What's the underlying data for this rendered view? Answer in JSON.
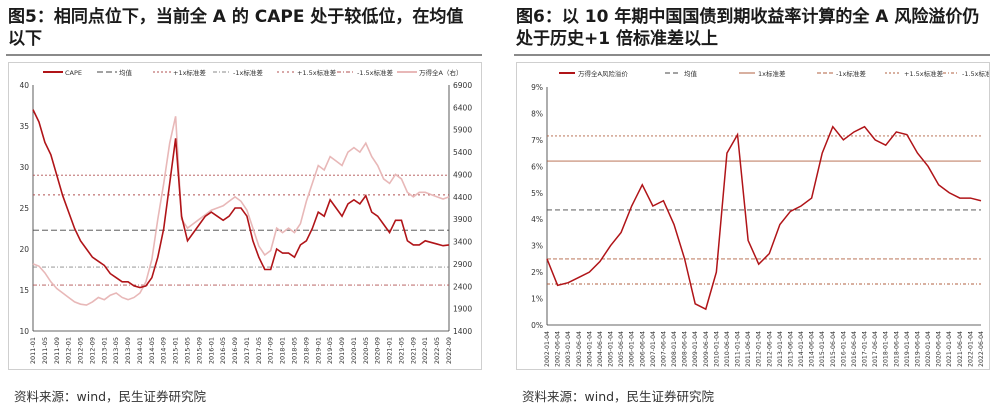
{
  "panels": [
    {
      "title": "图5：相同点位下，当前全 A 的 CAPE 处于较低位，在均值以下",
      "source": "资料来源：wind，民生证券研究院"
    },
    {
      "title": "图6：以 10 年期中国国债到期收益率计算的全 A 风险溢价仍处于历史+1 倍标准差以上",
      "source": "资料来源：wind，民生证券研究院"
    }
  ],
  "chart_data": [
    {
      "type": "line",
      "legend_placement": "top",
      "grid": false,
      "x_ticks": [
        "2011-01",
        "2011-05",
        "2011-09",
        "2012-01",
        "2012-05",
        "2012-09",
        "2013-01",
        "2013-05",
        "2013-09",
        "2014-01",
        "2014-05",
        "2014-09",
        "2015-01",
        "2015-05",
        "2015-09",
        "2016-01",
        "2016-05",
        "2016-09",
        "2017-01",
        "2017-05",
        "2017-09",
        "2018-01",
        "2018-05",
        "2018-09",
        "2019-01",
        "2019-05",
        "2019-09",
        "2020-01",
        "2020-05",
        "2020-09",
        "2021-01",
        "2021-05",
        "2021-09",
        "2022-01",
        "2022-05",
        "2022-09"
      ],
      "ylim_left": [
        10,
        40
      ],
      "y_ticks_left": [
        10,
        15,
        20,
        25,
        30,
        35,
        40
      ],
      "ylim_right": [
        1400,
        6900
      ],
      "y_ticks_right": [
        1400,
        1900,
        2400,
        2900,
        3400,
        3900,
        4400,
        4900,
        5400,
        5900,
        6400,
        6900
      ],
      "series": [
        {
          "name": "CAPE",
          "axis": "left",
          "color": "#b01418",
          "x": [
            0,
            0.5,
            1,
            1.5,
            2,
            2.5,
            3,
            3.5,
            4,
            4.5,
            5,
            5.5,
            6,
            6.5,
            7,
            7.5,
            8,
            8.5,
            9,
            9.5,
            10,
            10.5,
            11,
            11.5,
            12,
            12.5,
            13,
            13.5,
            14,
            14.5,
            15,
            15.5,
            16,
            16.5,
            17,
            17.5,
            18,
            18.5,
            19,
            19.5,
            20,
            20.5,
            21,
            21.5,
            22,
            22.5,
            23,
            23.5,
            24,
            24.5,
            25,
            25.5,
            26,
            26.5,
            27,
            27.5,
            28,
            28.5,
            29,
            29.5,
            30,
            30.5,
            31,
            31.5,
            32,
            32.5,
            33,
            33.5,
            34,
            34.5,
            35
          ],
          "values": [
            37.0,
            35.5,
            33.0,
            31.5,
            29.0,
            26.5,
            24.5,
            22.5,
            21.0,
            20.0,
            19.0,
            18.5,
            18.0,
            17.0,
            16.5,
            16.0,
            16.0,
            15.5,
            15.3,
            15.5,
            16.5,
            19.0,
            22.5,
            28.0,
            33.5,
            24.0,
            21.0,
            22.0,
            23.0,
            24.0,
            24.5,
            24.0,
            23.5,
            24.0,
            25.0,
            25.0,
            24.0,
            21.0,
            19.0,
            17.5,
            17.5,
            20.0,
            19.5,
            19.5,
            19.0,
            20.5,
            21.0,
            22.5,
            24.5,
            24.0,
            26.0,
            25.0,
            24.0,
            25.5,
            26.0,
            25.5,
            26.5,
            24.5,
            24.0,
            23.0,
            22.0,
            23.5,
            23.5,
            21.0,
            20.5,
            20.5,
            21.0,
            20.8,
            20.6,
            20.4,
            20.5
          ]
        },
        {
          "name": "均值",
          "axis": "left",
          "color": "#444444",
          "constant": 22.3
        },
        {
          "name": "+1x标准差",
          "axis": "left",
          "color": "#b05050",
          "constant": 29.0
        },
        {
          "name": "-1x标准差",
          "axis": "left",
          "color": "#888888",
          "constant": 17.8
        },
        {
          "name": "+1.5x标准差",
          "axis": "left",
          "color": "#b05050",
          "constant": 26.6
        },
        {
          "name": "-1.5x标准差",
          "axis": "left",
          "color": "#b05050",
          "constant": 15.6
        },
        {
          "name": "万得全A（右）",
          "axis": "right",
          "color": "#e8b8b8",
          "x": [
            0,
            0.5,
            1,
            1.5,
            2,
            2.5,
            3,
            3.5,
            4,
            4.5,
            5,
            5.5,
            6,
            6.5,
            7,
            7.5,
            8,
            8.5,
            9,
            9.5,
            10,
            10.5,
            11,
            11.5,
            12,
            12.5,
            13,
            13.5,
            14,
            14.5,
            15,
            15.5,
            16,
            16.5,
            17,
            17.5,
            18,
            18.5,
            19,
            19.5,
            20,
            20.5,
            21,
            21.5,
            22,
            22.5,
            23,
            23.5,
            24,
            24.5,
            25,
            25.5,
            26,
            26.5,
            27,
            27.5,
            28,
            28.5,
            29,
            29.5,
            30,
            30.5,
            31,
            31.5,
            32,
            32.5,
            33,
            33.5,
            34,
            34.5,
            35
          ],
          "values": [
            2900,
            2850,
            2700,
            2500,
            2350,
            2250,
            2150,
            2050,
            2000,
            1980,
            2050,
            2150,
            2100,
            2200,
            2250,
            2150,
            2100,
            2150,
            2250,
            2500,
            3000,
            3900,
            4700,
            5600,
            6200,
            3900,
            3700,
            3800,
            3900,
            4000,
            4100,
            4150,
            4200,
            4300,
            4400,
            4300,
            4100,
            3700,
            3300,
            3100,
            3200,
            3700,
            3600,
            3700,
            3600,
            3800,
            4300,
            4700,
            5100,
            5000,
            5300,
            5200,
            5100,
            5400,
            5500,
            5400,
            5600,
            5300,
            5100,
            4800,
            4700,
            4900,
            4800,
            4500,
            4400,
            4500,
            4500,
            4450,
            4400,
            4350,
            4400
          ]
        }
      ]
    },
    {
      "type": "line",
      "legend_placement": "top",
      "grid": false,
      "x_ticks": [
        "2002-01-04",
        "2002-06-04",
        "2003-01-04",
        "2003-06-04",
        "2004-01-04",
        "2004-06-04",
        "2005-01-04",
        "2005-06-04",
        "2006-01-04",
        "2006-06-04",
        "2007-01-04",
        "2007-06-04",
        "2008-01-04",
        "2008-06-04",
        "2009-01-04",
        "2009-06-04",
        "2010-01-04",
        "2010-06-04",
        "2011-01-04",
        "2011-06-04",
        "2012-01-04",
        "2012-06-04",
        "2013-01-04",
        "2013-06-04",
        "2014-01-04",
        "2014-06-04",
        "2015-01-04",
        "2015-06-04",
        "2016-01-04",
        "2016-06-04",
        "2017-01-04",
        "2017-06-04",
        "2018-01-04",
        "2018-06-04",
        "2019-01-04",
        "2019-06-04",
        "2020-01-04",
        "2020-06-04",
        "2021-01-04",
        "2021-06-04",
        "2022-01-04",
        "2022-06-04"
      ],
      "ylim": [
        0,
        9
      ],
      "y_ticks": [
        "0%",
        "1%",
        "2%",
        "3%",
        "4%",
        "5%",
        "6%",
        "7%",
        "8%",
        "9%"
      ],
      "series": [
        {
          "name": "万得全A风险溢价",
          "color": "#b01418",
          "x": [
            0,
            0.5,
            1,
            1.5,
            2,
            2.5,
            3,
            3.5,
            4,
            4.5,
            5,
            5.5,
            6,
            6.5,
            7,
            7.5,
            8,
            8.5,
            9,
            9.5,
            10,
            10.5,
            11,
            11.5,
            12,
            12.5,
            13,
            13.5,
            14,
            14.5,
            15,
            15.5,
            16,
            16.5,
            17,
            17.5,
            18,
            18.5,
            19,
            19.5,
            20,
            20.5
          ],
          "values": [
            2.5,
            1.5,
            1.6,
            1.8,
            2.0,
            2.4,
            3.0,
            3.5,
            4.5,
            5.3,
            4.5,
            4.7,
            3.8,
            2.5,
            0.8,
            0.6,
            2.0,
            6.5,
            7.2,
            3.2,
            2.3,
            2.7,
            3.8,
            4.3,
            4.5,
            4.8,
            6.5,
            7.5,
            7.0,
            7.3,
            7.5,
            7.0,
            6.8,
            7.3,
            7.2,
            6.5,
            6.0,
            5.3,
            5.0,
            4.8,
            4.8,
            4.7
          ]
        },
        {
          "name": "均值",
          "color": "#444444",
          "constant": 4.35
        },
        {
          "name": "1x标准差",
          "color": "#b06040",
          "constant": 6.2
        },
        {
          "name": "-1x标准差",
          "color": "#b06040",
          "constant": 2.5
        },
        {
          "name": "+1.5x标准差",
          "color": "#b06040",
          "constant": 7.15
        },
        {
          "name": "-1.5x标准差",
          "color": "#b06040",
          "constant": 1.55
        }
      ]
    }
  ]
}
